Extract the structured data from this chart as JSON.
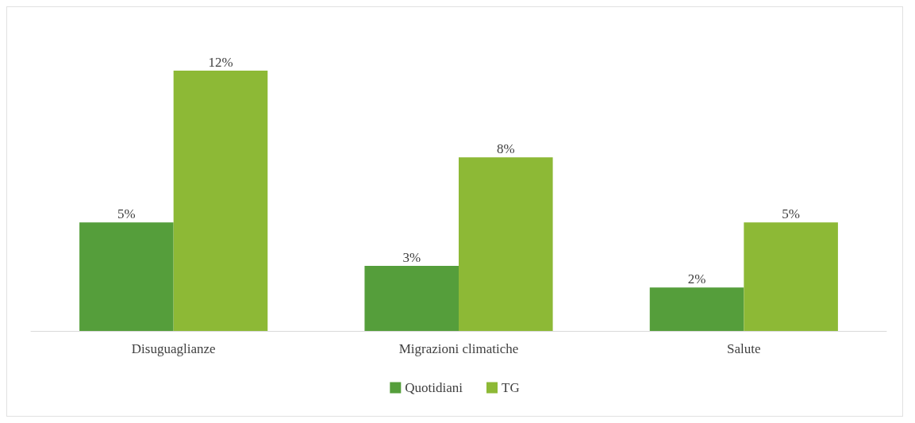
{
  "chart_data": {
    "type": "bar",
    "categories": [
      "Disuguaglianze",
      "Migrazioni climatiche",
      "Salute"
    ],
    "series": [
      {
        "name": "Quotidiani",
        "color": "#559e3b",
        "values": [
          5,
          3,
          2
        ],
        "value_labels": [
          "5%",
          "3%",
          "2%"
        ]
      },
      {
        "name": "TG",
        "color": "#8db936",
        "values": [
          12,
          8,
          5
        ],
        "value_labels": [
          "12%",
          "8%",
          "5%"
        ]
      }
    ],
    "legend": "bottom"
  }
}
